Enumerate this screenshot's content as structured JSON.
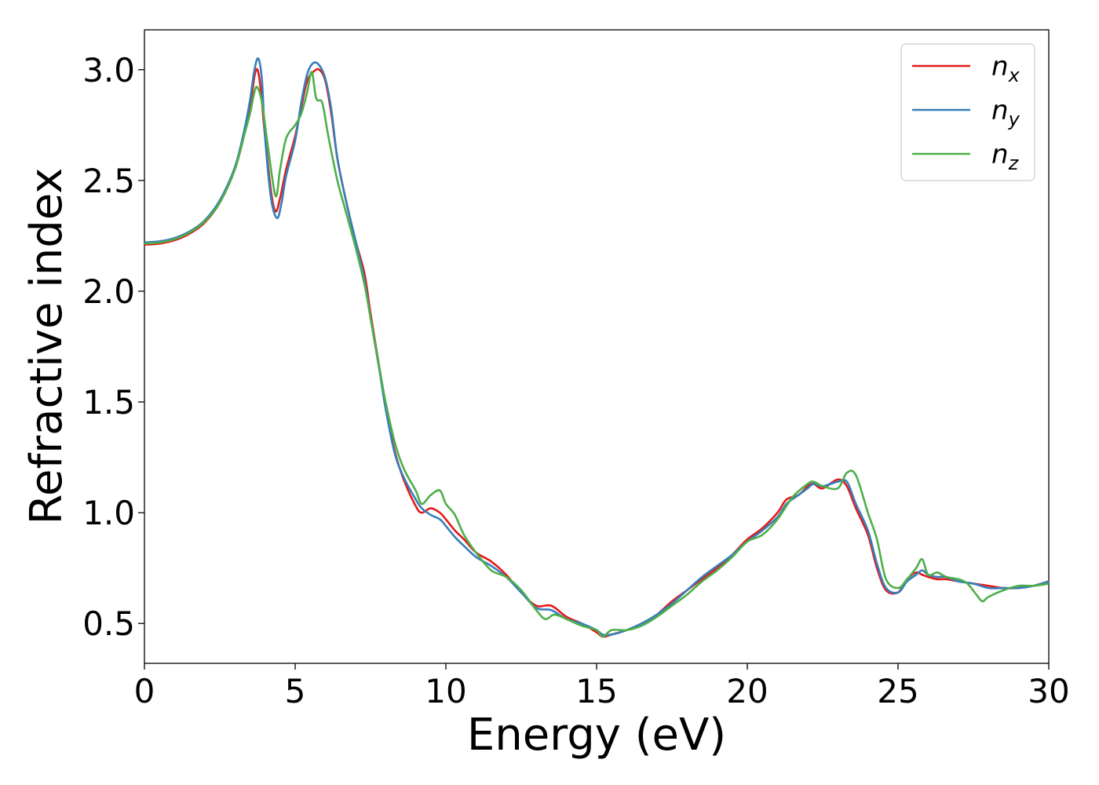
{
  "chart_data": {
    "type": "line",
    "title": "",
    "xlabel": "Energy (eV)",
    "ylabel": "Refractive index",
    "xlim": [
      0,
      30
    ],
    "ylim": [
      0.32,
      3.18
    ],
    "xticks": [
      0,
      5,
      10,
      15,
      20,
      25,
      30
    ],
    "xtick_labels": [
      "0",
      "5",
      "10",
      "15",
      "20",
      "25",
      "30"
    ],
    "yticks": [
      0.5,
      1.0,
      1.5,
      2.0,
      2.5,
      3.0
    ],
    "ytick_labels": [
      "0.5",
      "1.0",
      "1.5",
      "2.0",
      "2.5",
      "3.0"
    ],
    "grid": false,
    "legend_position": "top-right",
    "series": [
      {
        "name": "n_x",
        "label_base": "n",
        "label_sub": "x",
        "color": "#e41a1c",
        "x": [
          0,
          0.5,
          1,
          1.5,
          2,
          2.5,
          3,
          3.3,
          3.5,
          3.65,
          3.75,
          3.85,
          4,
          4.2,
          4.35,
          4.5,
          4.7,
          5,
          5.2,
          5.4,
          5.6,
          5.8,
          6,
          6.2,
          6.4,
          6.7,
          7,
          7.3,
          7.5,
          7.8,
          8,
          8.3,
          8.6,
          9,
          9.2,
          9.5,
          9.8,
          10,
          10.3,
          10.6,
          11,
          11.5,
          12,
          12.5,
          13,
          13.5,
          14,
          14.5,
          15,
          15.2,
          15.5,
          16,
          16.5,
          17,
          17.5,
          18,
          18.5,
          19,
          19.5,
          20,
          20.5,
          21,
          21.3,
          21.7,
          22,
          22.2,
          22.5,
          23,
          23.3,
          23.6,
          24,
          24.3,
          24.6,
          25,
          25.3,
          25.6,
          25.8,
          26,
          26.3,
          26.6,
          27,
          27.5,
          28,
          28.5,
          29,
          29.5,
          30
        ],
        "y": [
          2.21,
          2.215,
          2.23,
          2.26,
          2.31,
          2.4,
          2.55,
          2.7,
          2.82,
          2.97,
          3.0,
          2.92,
          2.7,
          2.45,
          2.36,
          2.42,
          2.55,
          2.7,
          2.83,
          2.95,
          2.99,
          3.0,
          2.95,
          2.8,
          2.6,
          2.4,
          2.23,
          2.08,
          1.9,
          1.65,
          1.48,
          1.28,
          1.15,
          1.03,
          1.0,
          1.02,
          1.0,
          0.97,
          0.92,
          0.88,
          0.82,
          0.78,
          0.72,
          0.64,
          0.58,
          0.58,
          0.53,
          0.5,
          0.46,
          0.44,
          0.45,
          0.47,
          0.5,
          0.54,
          0.6,
          0.65,
          0.7,
          0.75,
          0.81,
          0.88,
          0.93,
          1.0,
          1.06,
          1.08,
          1.12,
          1.13,
          1.11,
          1.15,
          1.12,
          1.02,
          0.9,
          0.75,
          0.65,
          0.64,
          0.7,
          0.73,
          0.72,
          0.71,
          0.7,
          0.7,
          0.69,
          0.68,
          0.67,
          0.66,
          0.66,
          0.67,
          0.69
        ]
      },
      {
        "name": "n_y",
        "label_base": "n",
        "label_sub": "y",
        "color": "#377eb8",
        "x": [
          0,
          0.5,
          1,
          1.5,
          2,
          2.5,
          3,
          3.3,
          3.5,
          3.65,
          3.78,
          3.9,
          4,
          4.2,
          4.4,
          4.55,
          4.7,
          5,
          5.2,
          5.4,
          5.6,
          5.8,
          6,
          6.2,
          6.4,
          6.7,
          7,
          7.3,
          7.5,
          7.8,
          8,
          8.3,
          8.6,
          9,
          9.2,
          9.5,
          9.8,
          10,
          10.3,
          10.6,
          11,
          11.5,
          12,
          12.5,
          13,
          13.5,
          14,
          14.5,
          15,
          15.2,
          15.5,
          16,
          16.5,
          17,
          17.5,
          18,
          18.5,
          19,
          19.5,
          20,
          20.5,
          21,
          21.3,
          21.7,
          22,
          22.2,
          22.5,
          23,
          23.3,
          23.6,
          24,
          24.3,
          24.6,
          25,
          25.3,
          25.6,
          25.8,
          26,
          26.3,
          26.6,
          27,
          27.5,
          28,
          28.5,
          29,
          29.5,
          30
        ],
        "y": [
          2.22,
          2.225,
          2.24,
          2.27,
          2.32,
          2.41,
          2.56,
          2.72,
          2.86,
          3.0,
          3.05,
          2.95,
          2.7,
          2.42,
          2.33,
          2.4,
          2.52,
          2.68,
          2.85,
          2.98,
          3.03,
          3.02,
          2.96,
          2.82,
          2.6,
          2.4,
          2.23,
          2.05,
          1.88,
          1.64,
          1.47,
          1.27,
          1.16,
          1.06,
          1.02,
          0.99,
          0.97,
          0.94,
          0.89,
          0.85,
          0.8,
          0.76,
          0.71,
          0.64,
          0.57,
          0.56,
          0.52,
          0.5,
          0.47,
          0.45,
          0.45,
          0.47,
          0.5,
          0.54,
          0.59,
          0.65,
          0.71,
          0.76,
          0.81,
          0.87,
          0.92,
          0.98,
          1.04,
          1.08,
          1.11,
          1.13,
          1.12,
          1.14,
          1.14,
          1.04,
          0.92,
          0.77,
          0.66,
          0.64,
          0.69,
          0.72,
          0.74,
          0.72,
          0.71,
          0.71,
          0.69,
          0.68,
          0.66,
          0.66,
          0.66,
          0.67,
          0.69
        ]
      },
      {
        "name": "n_z",
        "label_base": "n",
        "label_sub": "z",
        "color": "#4daf4a",
        "x": [
          0,
          0.5,
          1,
          1.5,
          2,
          2.5,
          3,
          3.3,
          3.5,
          3.65,
          3.75,
          3.9,
          4.1,
          4.35,
          4.5,
          4.7,
          5,
          5.2,
          5.4,
          5.55,
          5.7,
          5.9,
          6.1,
          6.4,
          6.7,
          7,
          7.3,
          7.5,
          7.8,
          8,
          8.3,
          8.6,
          9,
          9.2,
          9.5,
          9.8,
          10,
          10.3,
          10.6,
          11,
          11.5,
          12,
          12.5,
          13,
          13.3,
          13.6,
          14,
          14.5,
          15,
          15.2,
          15.5,
          16,
          16.5,
          17,
          17.5,
          18,
          18.5,
          19,
          19.5,
          20,
          20.5,
          21,
          21.5,
          22,
          22.2,
          22.5,
          23,
          23.3,
          23.6,
          24,
          24.3,
          24.6,
          25,
          25.3,
          25.6,
          25.8,
          26,
          26.3,
          26.6,
          27,
          27.3,
          27.6,
          27.8,
          28,
          28.5,
          29,
          29.5,
          30
        ],
        "y": [
          2.215,
          2.22,
          2.235,
          2.265,
          2.315,
          2.4,
          2.55,
          2.7,
          2.8,
          2.9,
          2.92,
          2.85,
          2.65,
          2.43,
          2.55,
          2.69,
          2.75,
          2.8,
          2.9,
          2.99,
          2.87,
          2.85,
          2.7,
          2.5,
          2.35,
          2.2,
          2.03,
          1.88,
          1.65,
          1.5,
          1.32,
          1.2,
          1.1,
          1.04,
          1.08,
          1.1,
          1.04,
          0.99,
          0.9,
          0.82,
          0.74,
          0.71,
          0.65,
          0.56,
          0.52,
          0.54,
          0.52,
          0.49,
          0.47,
          0.44,
          0.47,
          0.47,
          0.49,
          0.53,
          0.58,
          0.63,
          0.69,
          0.74,
          0.8,
          0.87,
          0.9,
          0.97,
          1.07,
          1.13,
          1.14,
          1.12,
          1.11,
          1.18,
          1.17,
          1.0,
          0.88,
          0.7,
          0.66,
          0.7,
          0.75,
          0.79,
          0.72,
          0.73,
          0.71,
          0.7,
          0.68,
          0.63,
          0.6,
          0.62,
          0.65,
          0.67,
          0.67,
          0.68
        ]
      }
    ]
  }
}
